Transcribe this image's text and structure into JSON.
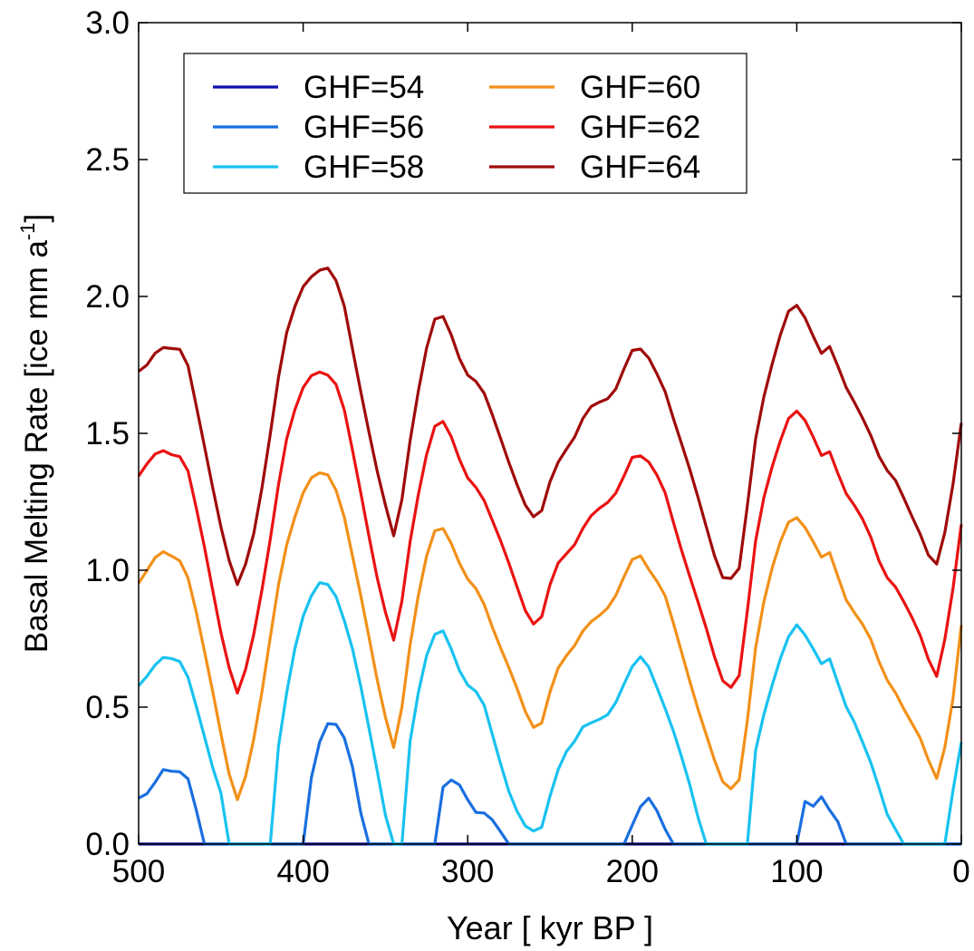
{
  "chart_data": {
    "type": "line",
    "xlabel": "Year [ kyr BP ]",
    "ylabel": "Basal Melting Rate [ice mm a",
    "ylabel_sup": "-1",
    "ylabel_end": "]",
    "xlim": [
      500,
      0
    ],
    "ylim": [
      0.0,
      3.0
    ],
    "x_reversed": true,
    "grid": false,
    "legend_position": "top-left",
    "legend_columns": 2,
    "xticks": [
      500,
      400,
      300,
      200,
      100,
      0
    ],
    "xtick_labels": [
      "500",
      "400",
      "300",
      "200",
      "100",
      "0"
    ],
    "yticks": [
      0.0,
      0.5,
      1.0,
      1.5,
      2.0,
      2.5,
      3.0
    ],
    "ytick_labels": [
      "0.0",
      "0.5",
      "1.0",
      "1.5",
      "2.0",
      "2.5",
      "3.0"
    ],
    "x": [
      500,
      495,
      490,
      485,
      480,
      475,
      470,
      465,
      460,
      455,
      450,
      445,
      440,
      435,
      430,
      425,
      420,
      415,
      410,
      405,
      400,
      395,
      390,
      385,
      380,
      375,
      370,
      365,
      360,
      355,
      350,
      345,
      340,
      335,
      330,
      325,
      320,
      315,
      310,
      305,
      300,
      295,
      290,
      285,
      280,
      275,
      270,
      265,
      260,
      255,
      250,
      245,
      240,
      235,
      230,
      225,
      220,
      215,
      210,
      205,
      200,
      195,
      190,
      185,
      180,
      175,
      170,
      165,
      160,
      155,
      150,
      145,
      140,
      135,
      130,
      125,
      120,
      115,
      110,
      105,
      100,
      95,
      90,
      85,
      80,
      75,
      70,
      65,
      60,
      55,
      50,
      45,
      40,
      35,
      30,
      25,
      20,
      15,
      10,
      5,
      0
    ],
    "series": [
      {
        "name": "GHF=54",
        "color": "#1010b0",
        "values": [
          0,
          0,
          0,
          0,
          0,
          0,
          0,
          0,
          0,
          0,
          0,
          0,
          0,
          0,
          0,
          0,
          0,
          0,
          0,
          0,
          0,
          0,
          0,
          0,
          0,
          0,
          0,
          0,
          0,
          0,
          0,
          0,
          0,
          0,
          0,
          0,
          0,
          0,
          0,
          0,
          0,
          0,
          0,
          0,
          0,
          0,
          0,
          0,
          0,
          0,
          0,
          0,
          0,
          0,
          0,
          0,
          0,
          0,
          0,
          0,
          0,
          0,
          0,
          0,
          0,
          0,
          0,
          0,
          0,
          0,
          0,
          0,
          0,
          0,
          0,
          0,
          0,
          0,
          0,
          0,
          0,
          0,
          0,
          0,
          0,
          0,
          0,
          0,
          0,
          0,
          0,
          0,
          0,
          0,
          0,
          0,
          0,
          0,
          0,
          0,
          0
        ]
      },
      {
        "name": "GHF=56",
        "color": "#1a6fe0",
        "values": [
          0.16,
          0.18,
          0.23,
          0.28,
          0.27,
          0.26,
          0.23,
          0.12,
          0.0,
          0,
          0,
          0,
          0,
          0,
          0,
          0,
          0,
          0,
          0,
          0,
          0.0,
          0.25,
          0.38,
          0.44,
          0.43,
          0.38,
          0.28,
          0.12,
          0.0,
          0,
          0,
          0,
          0,
          0,
          0,
          0,
          0.0,
          0.2,
          0.23,
          0.22,
          0.17,
          0.12,
          0.11,
          0.08,
          0.04,
          0.0,
          0,
          0,
          0,
          0,
          0,
          0,
          0,
          0,
          0,
          0,
          0,
          0,
          0,
          0,
          0.07,
          0.13,
          0.16,
          0.12,
          0.06,
          0.0,
          0,
          0,
          0,
          0,
          0,
          0,
          0,
          0,
          0,
          0,
          0,
          0,
          0,
          0,
          0.0,
          0.15,
          0.14,
          0.18,
          0.13,
          0.08,
          0.0,
          0,
          0,
          0,
          0,
          0,
          0,
          0,
          0,
          0,
          0,
          0,
          0,
          0,
          0
        ]
      },
      {
        "name": "GHF=58",
        "color": "#18c2f0",
        "values": [
          0.58,
          0.62,
          0.66,
          0.68,
          0.67,
          0.66,
          0.61,
          0.51,
          0.4,
          0.28,
          0.18,
          0.0,
          0,
          0,
          0,
          0,
          0.0,
          0.35,
          0.55,
          0.72,
          0.84,
          0.91,
          0.95,
          0.94,
          0.9,
          0.82,
          0.72,
          0.58,
          0.42,
          0.26,
          0.1,
          0.0,
          0.0,
          0.38,
          0.55,
          0.68,
          0.76,
          0.78,
          0.72,
          0.64,
          0.58,
          0.55,
          0.5,
          0.4,
          0.3,
          0.2,
          0.12,
          0.06,
          0.04,
          0.06,
          0.18,
          0.28,
          0.34,
          0.37,
          0.42,
          0.44,
          0.46,
          0.48,
          0.52,
          0.58,
          0.64,
          0.68,
          0.65,
          0.58,
          0.5,
          0.41,
          0.31,
          0.21,
          0.1,
          0.0,
          0,
          0,
          0,
          0,
          0.0,
          0.35,
          0.48,
          0.58,
          0.67,
          0.75,
          0.8,
          0.77,
          0.72,
          0.66,
          0.67,
          0.58,
          0.5,
          0.45,
          0.38,
          0.3,
          0.2,
          0.1,
          0.05,
          0.0,
          0,
          0,
          0,
          0,
          0.0,
          0.2,
          0.38
        ]
      },
      {
        "name": "GHF=60",
        "color": "#f29018",
        "values": [
          0.96,
          1.0,
          1.04,
          1.06,
          1.05,
          1.04,
          0.98,
          0.85,
          0.7,
          0.55,
          0.4,
          0.26,
          0.17,
          0.25,
          0.38,
          0.55,
          0.75,
          0.95,
          1.1,
          1.2,
          1.28,
          1.33,
          1.35,
          1.35,
          1.3,
          1.2,
          1.05,
          0.9,
          0.75,
          0.6,
          0.47,
          0.36,
          0.5,
          0.72,
          0.9,
          1.05,
          1.15,
          1.16,
          1.1,
          1.02,
          0.96,
          0.93,
          0.88,
          0.8,
          0.72,
          0.64,
          0.56,
          0.48,
          0.43,
          0.45,
          0.56,
          0.64,
          0.68,
          0.72,
          0.78,
          0.82,
          0.84,
          0.86,
          0.9,
          0.97,
          1.04,
          1.06,
          1.01,
          0.96,
          0.9,
          0.8,
          0.7,
          0.6,
          0.5,
          0.4,
          0.3,
          0.22,
          0.2,
          0.24,
          0.46,
          0.72,
          0.88,
          1.0,
          1.1,
          1.18,
          1.2,
          1.16,
          1.1,
          1.04,
          1.06,
          0.98,
          0.9,
          0.85,
          0.8,
          0.74,
          0.66,
          0.6,
          0.56,
          0.5,
          0.44,
          0.38,
          0.3,
          0.24,
          0.36,
          0.54,
          0.8
        ]
      },
      {
        "name": "GHF=62",
        "color": "#ea1212",
        "values": [
          1.34,
          1.38,
          1.42,
          1.44,
          1.43,
          1.42,
          1.36,
          1.22,
          1.08,
          0.93,
          0.78,
          0.65,
          0.55,
          0.63,
          0.76,
          0.93,
          1.12,
          1.32,
          1.48,
          1.58,
          1.66,
          1.71,
          1.73,
          1.72,
          1.68,
          1.58,
          1.43,
          1.28,
          1.13,
          0.98,
          0.85,
          0.74,
          0.88,
          1.1,
          1.28,
          1.43,
          1.53,
          1.54,
          1.48,
          1.4,
          1.34,
          1.31,
          1.26,
          1.18,
          1.1,
          1.02,
          0.94,
          0.86,
          0.81,
          0.83,
          0.94,
          1.02,
          1.06,
          1.1,
          1.16,
          1.2,
          1.22,
          1.24,
          1.28,
          1.35,
          1.42,
          1.42,
          1.39,
          1.34,
          1.28,
          1.18,
          1.08,
          0.98,
          0.88,
          0.78,
          0.68,
          0.6,
          0.58,
          0.62,
          0.85,
          1.1,
          1.26,
          1.38,
          1.48,
          1.56,
          1.58,
          1.54,
          1.48,
          1.42,
          1.44,
          1.36,
          1.28,
          1.23,
          1.18,
          1.12,
          1.04,
          0.98,
          0.94,
          0.88,
          0.82,
          0.76,
          0.68,
          0.62,
          0.75,
          0.93,
          1.16
        ]
      },
      {
        "name": "GHF=64",
        "color": "#a00a0a",
        "values": [
          1.72,
          1.75,
          1.8,
          1.82,
          1.81,
          1.8,
          1.74,
          1.6,
          1.46,
          1.31,
          1.16,
          1.03,
          0.94,
          1.02,
          1.14,
          1.31,
          1.5,
          1.7,
          1.86,
          1.96,
          2.04,
          2.08,
          2.1,
          2.1,
          2.05,
          1.96,
          1.81,
          1.66,
          1.51,
          1.36,
          1.23,
          1.12,
          1.26,
          1.48,
          1.66,
          1.81,
          1.91,
          1.92,
          1.86,
          1.78,
          1.72,
          1.69,
          1.64,
          1.56,
          1.48,
          1.4,
          1.32,
          1.24,
          1.19,
          1.21,
          1.32,
          1.4,
          1.45,
          1.49,
          1.55,
          1.59,
          1.61,
          1.63,
          1.67,
          1.74,
          1.8,
          1.8,
          1.77,
          1.72,
          1.66,
          1.56,
          1.46,
          1.36,
          1.26,
          1.16,
          1.06,
          0.98,
          0.97,
          1.0,
          1.23,
          1.48,
          1.64,
          1.76,
          1.86,
          1.94,
          1.96,
          1.92,
          1.86,
          1.8,
          1.82,
          1.74,
          1.66,
          1.61,
          1.56,
          1.5,
          1.42,
          1.36,
          1.32,
          1.26,
          1.2,
          1.14,
          1.06,
          1.02,
          1.13,
          1.31,
          1.54
        ]
      }
    ]
  }
}
